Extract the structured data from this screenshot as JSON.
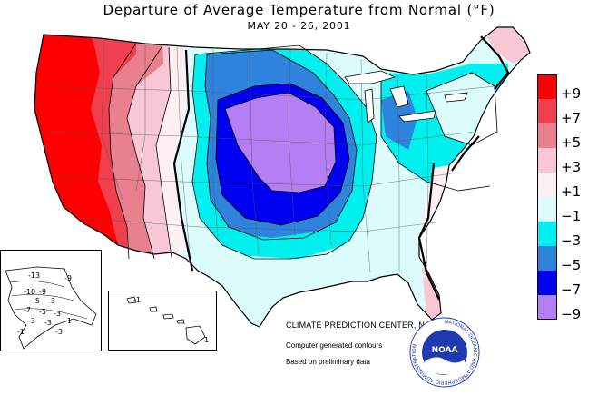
{
  "header": {
    "title": "Departure of Average Temperature from Normal (°F)",
    "subtitle": "MAY 20 - 26, 2001"
  },
  "legend": {
    "items": [
      {
        "label": "+9",
        "color": "#ff0000"
      },
      {
        "label": "+7",
        "color": "#f0404f"
      },
      {
        "label": "+5",
        "color": "#e88090"
      },
      {
        "label": "+3",
        "color": "#f7c8d3"
      },
      {
        "label": "+1",
        "color": "#fdeff2"
      },
      {
        "label": "−1",
        "color": "#dcfcfc"
      },
      {
        "label": "−3",
        "color": "#00f0f0"
      },
      {
        "label": "−5",
        "color": "#2e84dc"
      },
      {
        "label": "−7",
        "color": "#0000f0"
      },
      {
        "label": "−9",
        "color": "#b47ff4"
      }
    ]
  },
  "alaska_inset": {
    "labels": [
      "-13",
      "-9",
      "-10",
      "-9",
      "-5",
      "-3",
      "-7",
      "-5",
      "-3",
      "-3",
      "-3",
      "-1",
      "-1",
      "-3"
    ]
  },
  "hawaii_inset": {
    "labels": [
      "-1",
      "1"
    ]
  },
  "credits": {
    "agency": "CLIMATE PREDICTION CENTER, NOAA",
    "note1": "Computer generated contours",
    "note2": "Based on preliminary data"
  },
  "logo": {
    "text": "NOAA",
    "ring_text": "NATIONAL OCEANIC AND ATMOSPHERIC ADMINISTRATION"
  }
}
